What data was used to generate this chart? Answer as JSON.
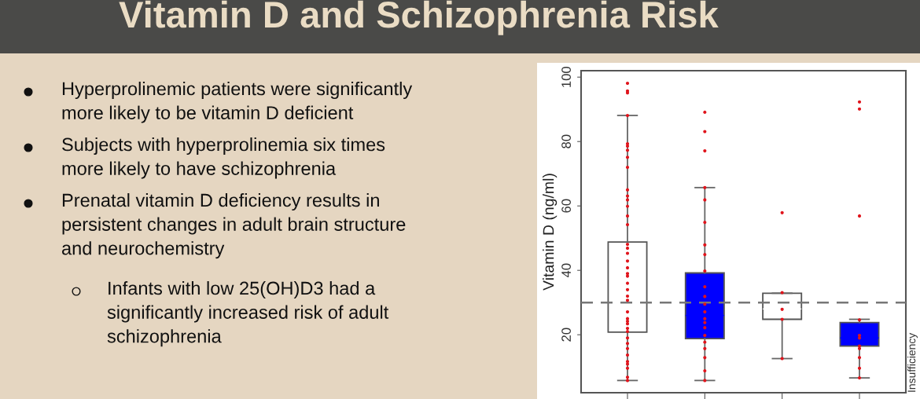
{
  "chart_data": {
    "type": "box",
    "title": "Vitamin D and Schizophrenia Risk",
    "ylabel": "Vitamin D (ng/ml)",
    "annotations": [
      "Hyperprolinemic patients were significantly\nmore likely to be vitamin D deficient",
      "Subjects with hyperprolinemia six times\nmore likely to have schizophrenia",
      "Prenatal vitamin D deficiency results in\npersistent changes in adult brain structure\nand neurochemistry",
      "Infants with low 25(OH)D3 had a\nsignificantly increased risk of adult\nschizophrenia"
    ],
    "categories": [
      null,
      null,
      null,
      null
    ],
    "colors": [
      "#ffffff",
      "#0000ff",
      "#ffffff",
      "#0000ff"
    ],
    "boxes": [
      {
        "low": 5.8,
        "q1": 20.8,
        "median": 30,
        "q3": 48.8,
        "high": 88.1
      },
      {
        "low": 5.8,
        "q1": 18.8,
        "median": 26,
        "q3": 39.2,
        "high": 65.7
      },
      {
        "low": 12.6,
        "q1": 24.8,
        "median": 28,
        "q3": 32.9,
        "high": 32.9
      },
      {
        "low": 6.6,
        "q1": 16.5,
        "median": 19,
        "q3": 23.8,
        "high": 24.8
      }
    ],
    "series": [
      {
        "type": "scatter",
        "color": "#e0141c",
        "values": [
          98.1,
          89.1,
          57.9,
          92.3
        ]
      },
      {
        "type": "scatter",
        "color": "#e0141c",
        "values": [
          95.7,
          83.1,
          33.1,
          90.1
        ]
      },
      {
        "type": "scatter",
        "color": "#e0141c",
        "values": [
          95.1,
          77.1,
          27.9,
          56.9
        ]
      },
      {
        "type": "scatter",
        "color": "#e0141c",
        "values": [
          88.1,
          65.7,
          24.8,
          24.6
        ]
      },
      {
        "type": "scatter",
        "color": "#e0141c",
        "values": [
          79.3,
          61.9,
          12.6,
          19.8
        ]
      },
      {
        "type": "scatter",
        "color": "#e0141c",
        "values": [
          78.6,
          54.9,
          null,
          19.0
        ]
      },
      {
        "type": "scatter",
        "color": "#e0141c",
        "values": [
          77.3,
          47.9,
          null,
          16.5
        ]
      },
      {
        "type": "scatter",
        "color": "#e0141c",
        "values": [
          75.1,
          44.9,
          null,
          15.7
        ]
      },
      {
        "type": "scatter",
        "color": "#e0141c",
        "values": [
          72.0,
          39.8,
          null,
          12.9
        ]
      },
      {
        "type": "scatter",
        "color": "#e0141c",
        "values": [
          65.0,
          34.9,
          null,
          9.6
        ]
      },
      {
        "type": "scatter",
        "color": "#e0141c",
        "values": [
          63.1,
          31.9,
          null,
          6.6
        ]
      },
      {
        "type": "scatter",
        "color": "#e0141c",
        "values": [
          61.9,
          29.5,
          null,
          null
        ]
      },
      {
        "type": "scatter",
        "color": "#e0141c",
        "values": [
          59.9,
          27.1,
          null,
          null
        ]
      },
      {
        "type": "scatter",
        "color": "#e0141c",
        "values": [
          56.9,
          25.0,
          null,
          null
        ]
      },
      {
        "type": "scatter",
        "color": "#e0141c",
        "values": [
          54.2,
          23.8,
          null,
          null
        ]
      },
      {
        "type": "scatter",
        "color": "#e0141c",
        "values": [
          48.1,
          22.2,
          null,
          null
        ]
      },
      {
        "type": "scatter",
        "color": "#e0141c",
        "values": [
          46.9,
          19.8,
          null,
          null
        ]
      },
      {
        "type": "scatter",
        "color": "#e0141c",
        "values": [
          45.3,
          17.7,
          null,
          null
        ]
      },
      {
        "type": "scatter",
        "color": "#e0141c",
        "values": [
          42.9,
          15.7,
          null,
          null
        ]
      },
      {
        "type": "scatter",
        "color": "#e0141c",
        "values": [
          40.8,
          12.9,
          null,
          null
        ]
      },
      {
        "type": "scatter",
        "color": "#e0141c",
        "values": [
          39.0,
          8.8,
          null,
          null
        ]
      },
      {
        "type": "scatter",
        "color": "#e0141c",
        "values": [
          38.2,
          5.8,
          null,
          null
        ]
      },
      {
        "type": "scatter",
        "color": "#e0141c",
        "values": [
          36.0,
          null,
          null,
          null
        ]
      },
      {
        "type": "scatter",
        "color": "#e0141c",
        "values": [
          34.0,
          null,
          null,
          null
        ]
      },
      {
        "type": "scatter",
        "color": "#e0141c",
        "values": [
          32.0,
          null,
          null,
          null
        ]
      },
      {
        "type": "scatter",
        "color": "#e0141c",
        "values": [
          30.7,
          null,
          null,
          null
        ]
      },
      {
        "type": "scatter",
        "color": "#e0141c",
        "values": [
          27.1,
          null,
          null,
          null
        ]
      },
      {
        "type": "scatter",
        "color": "#e0141c",
        "values": [
          25.0,
          null,
          null,
          null
        ]
      },
      {
        "type": "scatter",
        "color": "#e0141c",
        "values": [
          24.2,
          null,
          null,
          null
        ]
      },
      {
        "type": "scatter",
        "color": "#e0141c",
        "values": [
          23.4,
          null,
          null,
          null
        ]
      },
      {
        "type": "scatter",
        "color": "#e0141c",
        "values": [
          22.0,
          null,
          null,
          null
        ]
      },
      {
        "type": "scatter",
        "color": "#e0141c",
        "values": [
          21.0,
          null,
          null,
          null
        ]
      },
      {
        "type": "scatter",
        "color": "#e0141c",
        "values": [
          19.0,
          null,
          null,
          null
        ]
      },
      {
        "type": "scatter",
        "color": "#e0141c",
        "values": [
          17.3,
          null,
          null,
          null
        ]
      },
      {
        "type": "scatter",
        "color": "#e0141c",
        "values": [
          15.7,
          null,
          null,
          null
        ]
      },
      {
        "type": "scatter",
        "color": "#e0141c",
        "values": [
          13.7,
          null,
          null,
          null
        ]
      },
      {
        "type": "scatter",
        "color": "#e0141c",
        "values": [
          11.7,
          null,
          null,
          null
        ]
      },
      {
        "type": "scatter",
        "color": "#e0141c",
        "values": [
          10.9,
          null,
          null,
          null
        ]
      },
      {
        "type": "scatter",
        "color": "#e0141c",
        "values": [
          9.6,
          null,
          null,
          null
        ]
      },
      {
        "type": "scatter",
        "color": "#e0141c",
        "values": [
          6.8,
          null,
          null,
          null
        ]
      },
      {
        "type": "scatter",
        "color": "#e0141c",
        "values": [
          5.8,
          null,
          null,
          null
        ]
      }
    ],
    "marker": "circle",
    "ref_lines": [
      {
        "axis": "y",
        "value": 30,
        "label": "Insufficiency",
        "color": "#777777",
        "line_style": "dashed"
      }
    ],
    "ylim": [
      2,
      102
    ],
    "yticks": [
      20,
      40,
      60,
      80,
      100
    ]
  }
}
